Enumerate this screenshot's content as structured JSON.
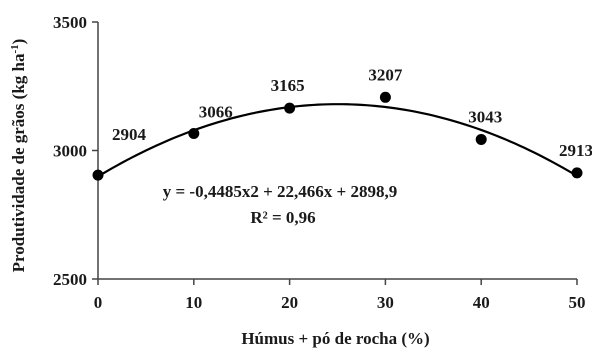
{
  "chart_data": {
    "type": "scatter",
    "x": [
      0,
      10,
      20,
      30,
      40,
      50
    ],
    "y": [
      2904,
      3066,
      3165,
      3207,
      3043,
      2913
    ],
    "data_labels": [
      "2904",
      "3066",
      "3165",
      "3207",
      "3043",
      "2913"
    ],
    "xlabel": "Húmus + pó de rocha (%)",
    "ylabel": "Produtividade de grãos (kg ha-1)",
    "ylabel_main": "Produtividade de grãos (kg ha",
    "ylabel_sup": "-1",
    "ylabel_close": ")",
    "xlim": [
      0,
      50
    ],
    "ylim": [
      2500,
      3500
    ],
    "xticks": [
      0,
      10,
      20,
      30,
      40,
      50
    ],
    "xtick_labels": [
      "0",
      "10",
      "20",
      "30",
      "40",
      "50"
    ],
    "yticks": [
      2500,
      3000,
      3500
    ],
    "ytick_labels": [
      "2500",
      "3000",
      "3500"
    ],
    "grid": false,
    "trendline": {
      "type": "polynomial",
      "coefficients": {
        "a": -0.4485,
        "b": 22.466,
        "c": 2898.9
      },
      "equation": "y = -0,4485x2 + 22,466x + 2898,9",
      "r_squared": "R² = 0,96"
    },
    "colors": {
      "points": "#000000",
      "curve": "#000000",
      "axes": "#444444"
    }
  }
}
